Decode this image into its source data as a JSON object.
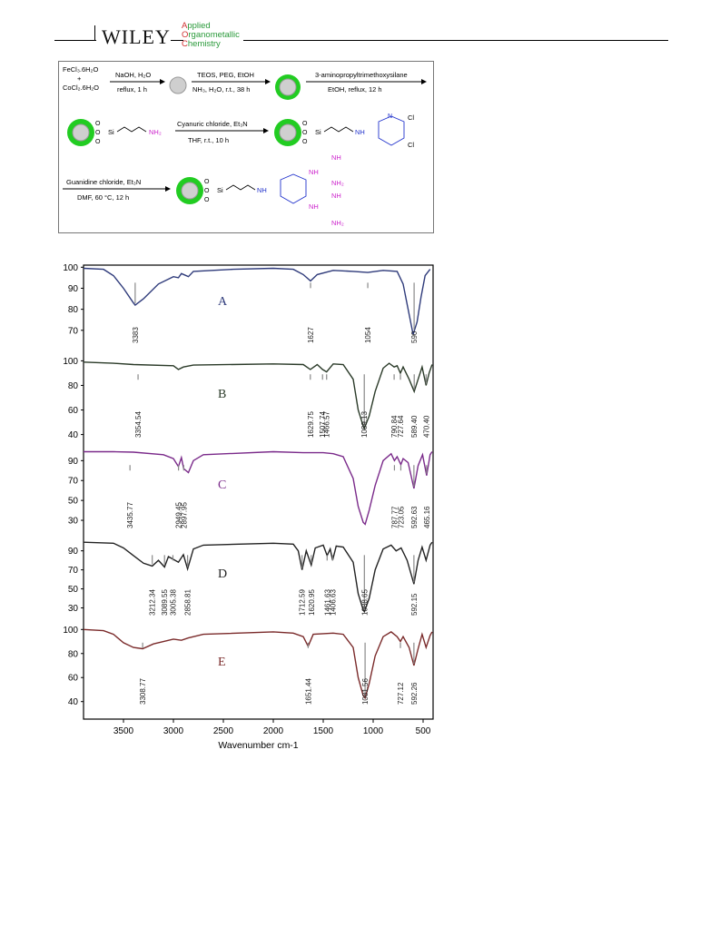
{
  "header": {
    "publisher": "WILEY",
    "journal_lines": [
      "Applied",
      "Organometallic",
      "Chemistry"
    ]
  },
  "scheme": {
    "reagents1": [
      "FeCl₃.6H₂O",
      "+",
      "CoCl₂.6H₂O"
    ],
    "step1_top": "NaOH, H₂O",
    "step1_bottom": "reflux, 1 h",
    "step2_top": "TEOS, PEG, EtOH",
    "step2_bottom": "NH₃, H₂O, r.t., 38 h",
    "step3_top": "3-aminopropyltrimethoxysilane",
    "step3_bottom": "EtOH, reflux, 12 h",
    "step4_top": "Cyanuric chloride, Et₃N",
    "step4_bottom": "THF, r.t., 10 h",
    "step5_top": "Guanidine chloride, Et₃N",
    "step5_bottom": "DMF, 60 °C, 12 h",
    "si": "Si",
    "o": "O",
    "nh2": "NH₂",
    "nh": "NH",
    "n": "N",
    "cl": "Cl",
    "colors": {
      "shell": "#22cc22",
      "core": "#cfcfcf",
      "amine": "#cc22cc",
      "triazine": "#2233cc"
    }
  },
  "chart_data": {
    "type": "line",
    "xlabel": "Wavenumber cm-1",
    "xlim": [
      3900,
      400
    ],
    "x_ticks": [
      3500,
      3000,
      2500,
      2000,
      1500,
      1000,
      500
    ],
    "series": [
      {
        "name": "A",
        "color": "#2e3a7a",
        "yticks": [
          70,
          80,
          90,
          100
        ],
        "ylim": [
          63,
          101
        ],
        "points": [
          [
            3900,
            99.5
          ],
          [
            3700,
            99
          ],
          [
            3600,
            96
          ],
          [
            3500,
            90
          ],
          [
            3400,
            83
          ],
          [
            3383,
            82
          ],
          [
            3300,
            85
          ],
          [
            3150,
            92
          ],
          [
            3000,
            95.5
          ],
          [
            2950,
            95
          ],
          [
            2920,
            97
          ],
          [
            2850,
            95.5
          ],
          [
            2800,
            98
          ],
          [
            2400,
            99
          ],
          [
            2000,
            99.5
          ],
          [
            1800,
            99
          ],
          [
            1700,
            96.5
          ],
          [
            1627,
            93.5
          ],
          [
            1560,
            96.5
          ],
          [
            1400,
            98.5
          ],
          [
            1200,
            98
          ],
          [
            1054,
            97.5
          ],
          [
            900,
            98.5
          ],
          [
            760,
            98
          ],
          [
            700,
            92
          ],
          [
            650,
            80
          ],
          [
            600,
            68
          ],
          [
            560,
            74
          ],
          [
            520,
            86
          ],
          [
            480,
            96
          ],
          [
            430,
            99
          ]
        ],
        "peaks": [
          {
            "x": 3383,
            "label": "3383"
          },
          {
            "x": 1627,
            "label": "1627"
          },
          {
            "x": 1054,
            "label": "1054"
          },
          {
            "x": 590,
            "label": "590"
          }
        ]
      },
      {
        "name": "B",
        "color": "#2a3a28",
        "yticks": [
          40,
          60,
          80,
          100
        ],
        "ylim": [
          36,
          104
        ],
        "points": [
          [
            3900,
            99
          ],
          [
            3600,
            98
          ],
          [
            3400,
            97
          ],
          [
            3000,
            96
          ],
          [
            2950,
            93
          ],
          [
            2900,
            95
          ],
          [
            2800,
            96.5
          ],
          [
            2000,
            97.5
          ],
          [
            1700,
            97
          ],
          [
            1629,
            93
          ],
          [
            1560,
            97
          ],
          [
            1507,
            93
          ],
          [
            1466,
            91
          ],
          [
            1400,
            97.5
          ],
          [
            1300,
            97
          ],
          [
            1200,
            85
          ],
          [
            1150,
            60
          ],
          [
            1100,
            47
          ],
          [
            1089,
            45
          ],
          [
            1040,
            55
          ],
          [
            980,
            75
          ],
          [
            900,
            94
          ],
          [
            840,
            98
          ],
          [
            790,
            95
          ],
          [
            760,
            96
          ],
          [
            727,
            90
          ],
          [
            700,
            95
          ],
          [
            640,
            85
          ],
          [
            589,
            75
          ],
          [
            550,
            85
          ],
          [
            510,
            95
          ],
          [
            470,
            80
          ],
          [
            440,
            90
          ],
          [
            410,
            97
          ]
        ],
        "peaks": [
          {
            "x": 3354,
            "label": "3354.54"
          },
          {
            "x": 1629,
            "label": "1629.75"
          },
          {
            "x": 1507,
            "label": "1507.74"
          },
          {
            "x": 1466,
            "label": "1466.57"
          },
          {
            "x": 1089,
            "label": "1089.13"
          },
          {
            "x": 790,
            "label": "790.84"
          },
          {
            "x": 727,
            "label": "727.64"
          },
          {
            "x": 589,
            "label": "589.40"
          },
          {
            "x": 470,
            "label": "470.40"
          }
        ]
      },
      {
        "name": "C",
        "color": "#7a2a8a",
        "yticks": [
          30,
          50,
          70,
          90
        ],
        "ylim": [
          20,
          104
        ],
        "points": [
          [
            3900,
            99
          ],
          [
            3600,
            99
          ],
          [
            3400,
            98.5
          ],
          [
            3100,
            96
          ],
          [
            3000,
            92
          ],
          [
            2950,
            84
          ],
          [
            2920,
            93
          ],
          [
            2897,
            82
          ],
          [
            2850,
            78
          ],
          [
            2800,
            90
          ],
          [
            2700,
            96
          ],
          [
            2000,
            99
          ],
          [
            1700,
            98
          ],
          [
            1500,
            98
          ],
          [
            1400,
            97
          ],
          [
            1300,
            94
          ],
          [
            1200,
            72
          ],
          [
            1150,
            44
          ],
          [
            1100,
            28
          ],
          [
            1080,
            26
          ],
          [
            1040,
            40
          ],
          [
            980,
            65
          ],
          [
            900,
            90
          ],
          [
            820,
            97
          ],
          [
            787,
            90
          ],
          [
            760,
            94
          ],
          [
            723,
            86
          ],
          [
            700,
            92
          ],
          [
            650,
            88
          ],
          [
            592,
            62
          ],
          [
            550,
            85
          ],
          [
            505,
            96
          ],
          [
            465,
            75
          ],
          [
            430,
            96
          ],
          [
            410,
            99
          ]
        ],
        "peaks": [
          {
            "x": 3435,
            "label": "3435.77"
          },
          {
            "x": 2949,
            "label": "2949.45"
          },
          {
            "x": 2897,
            "label": "2897.95"
          },
          {
            "x": 787,
            "label": "787.77"
          },
          {
            "x": 723,
            "label": "723.05"
          },
          {
            "x": 592,
            "label": "592.63"
          },
          {
            "x": 465,
            "label": "465.16"
          }
        ]
      },
      {
        "name": "D",
        "color": "#222222",
        "yticks": [
          30,
          50,
          70,
          90
        ],
        "ylim": [
          20,
          104
        ],
        "points": [
          [
            3900,
            99
          ],
          [
            3600,
            98
          ],
          [
            3500,
            93
          ],
          [
            3400,
            85
          ],
          [
            3300,
            77
          ],
          [
            3212,
            74
          ],
          [
            3150,
            80
          ],
          [
            3089,
            73
          ],
          [
            3050,
            84
          ],
          [
            2950,
            78
          ],
          [
            2900,
            86
          ],
          [
            2858,
            71
          ],
          [
            2800,
            92
          ],
          [
            2700,
            96
          ],
          [
            2000,
            98
          ],
          [
            1800,
            97
          ],
          [
            1750,
            90
          ],
          [
            1712,
            70
          ],
          [
            1670,
            90
          ],
          [
            1620,
            75
          ],
          [
            1580,
            93
          ],
          [
            1500,
            96
          ],
          [
            1461,
            85
          ],
          [
            1430,
            92
          ],
          [
            1406,
            80
          ],
          [
            1370,
            95
          ],
          [
            1300,
            94
          ],
          [
            1200,
            78
          ],
          [
            1150,
            45
          ],
          [
            1100,
            28
          ],
          [
            1088,
            26
          ],
          [
            1040,
            40
          ],
          [
            980,
            70
          ],
          [
            900,
            92
          ],
          [
            820,
            96
          ],
          [
            770,
            90
          ],
          [
            720,
            93
          ],
          [
            660,
            80
          ],
          [
            592,
            55
          ],
          [
            550,
            80
          ],
          [
            510,
            94
          ],
          [
            470,
            80
          ],
          [
            430,
            96
          ],
          [
            410,
            99
          ]
        ],
        "peaks": [
          {
            "x": 3212,
            "label": "3212.34"
          },
          {
            "x": 3089,
            "label": "3089.55"
          },
          {
            "x": 3005,
            "label": "3005.38"
          },
          {
            "x": 2858,
            "label": "2858.81"
          },
          {
            "x": 1712,
            "label": "1712.59"
          },
          {
            "x": 1620,
            "label": "1620.95"
          },
          {
            "x": 1461,
            "label": "1461.63"
          },
          {
            "x": 1406,
            "label": "1406.63"
          },
          {
            "x": 1088,
            "label": "1088.65"
          },
          {
            "x": 592,
            "label": "592.15"
          }
        ]
      },
      {
        "name": "E",
        "color": "#7a2a2a",
        "yticks": [
          40,
          60,
          80,
          100
        ],
        "ylim": [
          36,
          104
        ],
        "points": [
          [
            3900,
            100
          ],
          [
            3700,
            99
          ],
          [
            3600,
            96
          ],
          [
            3500,
            89
          ],
          [
            3400,
            85
          ],
          [
            3308,
            84
          ],
          [
            3200,
            88
          ],
          [
            3000,
            92
          ],
          [
            2920,
            91
          ],
          [
            2850,
            93
          ],
          [
            2700,
            96
          ],
          [
            2000,
            98
          ],
          [
            1800,
            97
          ],
          [
            1700,
            94
          ],
          [
            1651,
            86
          ],
          [
            1600,
            96
          ],
          [
            1400,
            97
          ],
          [
            1300,
            96
          ],
          [
            1200,
            85
          ],
          [
            1150,
            60
          ],
          [
            1100,
            45
          ],
          [
            1081,
            43
          ],
          [
            1040,
            55
          ],
          [
            980,
            78
          ],
          [
            900,
            94
          ],
          [
            820,
            98
          ],
          [
            760,
            94
          ],
          [
            727,
            90
          ],
          [
            700,
            94
          ],
          [
            640,
            85
          ],
          [
            592,
            70
          ],
          [
            550,
            84
          ],
          [
            510,
            96
          ],
          [
            470,
            85
          ],
          [
            430,
            95
          ],
          [
            410,
            98
          ]
        ],
        "peaks": [
          {
            "x": 3308,
            "label": "3308.77"
          },
          {
            "x": 1651,
            "label": "1651.44"
          },
          {
            "x": 1081,
            "label": "1081.56"
          },
          {
            "x": 727,
            "label": "727.12"
          },
          {
            "x": 592,
            "label": "592.26"
          }
        ]
      }
    ]
  }
}
